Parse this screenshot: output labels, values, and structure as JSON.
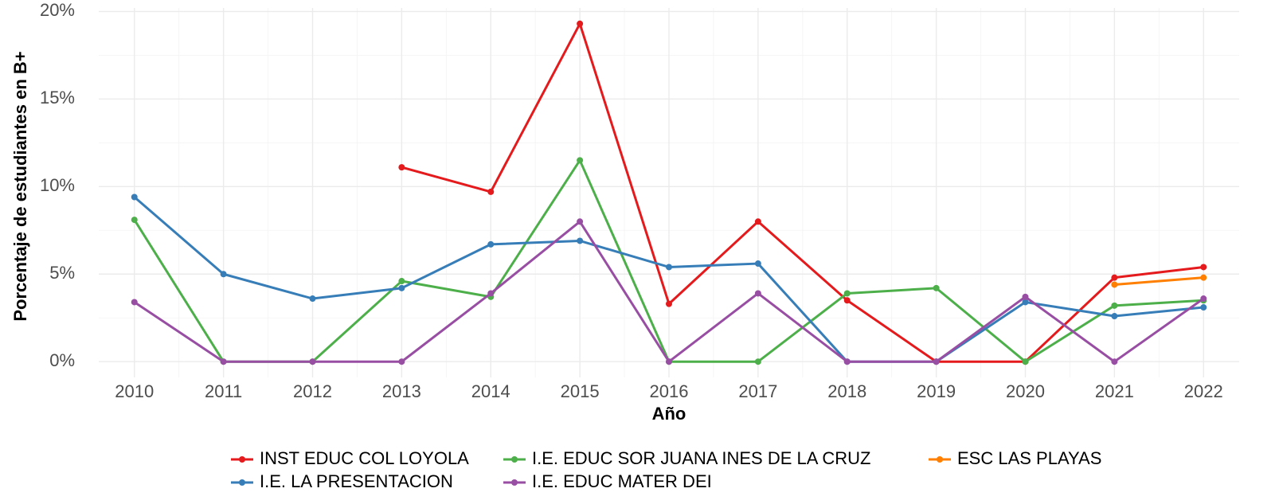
{
  "chart_data": {
    "type": "line",
    "x_label": "Año",
    "y_label": "Porcentaje de estudiantes en B+",
    "x": [
      2010,
      2011,
      2012,
      2013,
      2014,
      2015,
      2016,
      2017,
      2018,
      2019,
      2020,
      2021,
      2022
    ],
    "xlim": [
      2009.6,
      2022.4
    ],
    "xticks": [
      2010,
      2011,
      2012,
      2013,
      2014,
      2015,
      2016,
      2017,
      2018,
      2019,
      2020,
      2021,
      2022
    ],
    "ylim": [
      -0.9,
      20.2
    ],
    "yticks": [
      {
        "value": 0,
        "label": "0%"
      },
      {
        "value": 5,
        "label": "5%"
      },
      {
        "value": 10,
        "label": "10%"
      },
      {
        "value": 15,
        "label": "15%"
      },
      {
        "value": 20,
        "label": "20%"
      }
    ],
    "grid": true,
    "legend_position": "bottom",
    "series": [
      {
        "name": "INST EDUC COL LOYOLA",
        "color": "#e41a1c",
        "values": [
          null,
          null,
          null,
          11.1,
          9.7,
          19.3,
          3.3,
          8.0,
          3.5,
          0,
          0,
          4.8,
          5.4
        ]
      },
      {
        "name": "I.E. EDUC SOR JUANA INES DE LA CRUZ",
        "color": "#4daf4a",
        "values": [
          8.1,
          0,
          0,
          4.6,
          3.7,
          11.5,
          0,
          0,
          3.9,
          4.2,
          0,
          3.2,
          3.5
        ]
      },
      {
        "name": "ESC LAS PLAYAS",
        "color": "#ff7f00",
        "values": [
          null,
          null,
          null,
          null,
          null,
          null,
          null,
          null,
          null,
          null,
          null,
          4.4,
          4.8
        ]
      },
      {
        "name": "I.E. LA PRESENTACION",
        "color": "#377eb8",
        "values": [
          9.4,
          5.0,
          3.6,
          4.2,
          6.7,
          6.9,
          5.4,
          5.6,
          0,
          0,
          3.4,
          2.6,
          3.1
        ]
      },
      {
        "name": "I.E. EDUC MATER DEI",
        "color": "#984ea3",
        "values": [
          3.4,
          0,
          0,
          0,
          3.9,
          8.0,
          0,
          3.9,
          0,
          0,
          3.7,
          0,
          3.6
        ]
      }
    ]
  }
}
